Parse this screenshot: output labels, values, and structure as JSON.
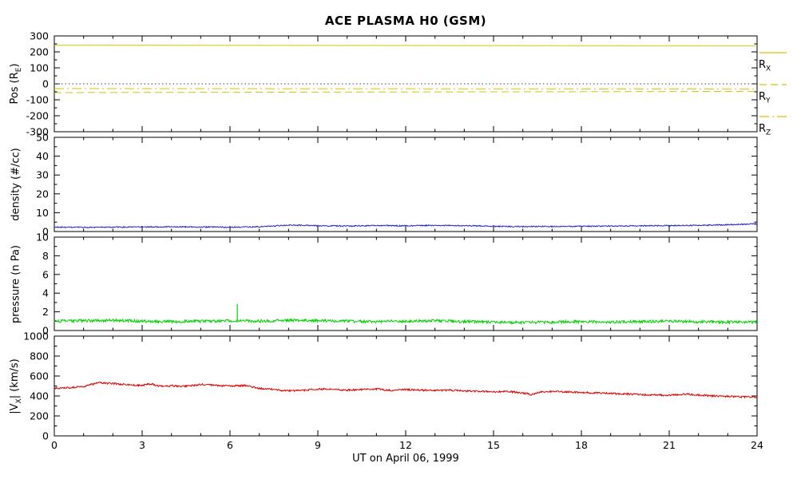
{
  "chart_data": {
    "type": "line",
    "title": "ACE PLASMA H0 (GSM)",
    "xlabel": "UT on April 06, 1999",
    "xlim": [
      0,
      24
    ],
    "x_ticks": [
      0,
      3,
      6,
      9,
      12,
      15,
      18,
      21,
      24
    ],
    "x_minor": 1,
    "frame_color": "#000000",
    "background": "#ffffff",
    "panels": [
      {
        "ylabel": {
          "pre": "Pos (R",
          "sub": "E",
          "post": ")"
        },
        "ylim": [
          -300,
          300
        ],
        "yticks": [
          -300,
          -200,
          -100,
          0,
          100,
          200,
          300
        ],
        "yminor": 50,
        "series": [
          {
            "name": "zero-reference",
            "color": "#3b3b7a",
            "style": "dot",
            "x": [
              0,
              24
            ],
            "y": [
              0,
              0
            ],
            "noise": 0
          },
          {
            "name": "R_X",
            "color": "#d9c300",
            "style": "solid",
            "x": [
              0,
              24
            ],
            "y": [
              242,
              238
            ],
            "noise": 0
          },
          {
            "name": "R_Y",
            "color": "#d9c300",
            "style": "dash",
            "x": [
              0,
              24
            ],
            "y": [
              -55,
              -47
            ],
            "noise": 0
          },
          {
            "name": "R_Z",
            "color": "#d9c300",
            "style": "dashdot",
            "x": [
              0,
              24
            ],
            "y": [
              -30,
              -33
            ],
            "noise": 0
          }
        ]
      },
      {
        "ylabel": {
          "pre": "density (#/cc)",
          "sub": "",
          "post": ""
        },
        "ylim": [
          0,
          50
        ],
        "yticks": [
          0,
          10,
          20,
          30,
          40,
          50
        ],
        "yminor": 5,
        "series": [
          {
            "name": "proton-density",
            "color": "#2222cc",
            "style": "solid",
            "x": [
              0,
              1,
              2,
              3,
              4,
              5,
              6,
              7,
              8,
              9,
              10,
              11,
              12,
              13,
              14,
              15,
              16,
              17,
              18,
              19,
              20,
              21,
              22,
              23,
              24
            ],
            "y": [
              2.3,
              2.2,
              2.3,
              2.4,
              2.5,
              2.4,
              2.3,
              2.5,
              3.4,
              3.1,
              2.9,
              3.2,
              3.0,
              3.3,
              3.1,
              2.8,
              2.6,
              2.7,
              2.8,
              2.9,
              3.0,
              3.1,
              3.3,
              3.6,
              4.1
            ],
            "noise": 0.3
          }
        ]
      },
      {
        "ylabel": {
          "pre": "pressure (n Pa)",
          "sub": "",
          "post": ""
        },
        "ylim": [
          0,
          10
        ],
        "yticks": [
          0,
          2,
          4,
          6,
          8,
          10
        ],
        "yminor": 1,
        "series": [
          {
            "name": "flow-pressure",
            "color": "#00d000",
            "style": "solid",
            "x": [
              0,
              1,
              2,
              3,
              4,
              5,
              6,
              7,
              8,
              9,
              10,
              11,
              12,
              13,
              14,
              15,
              16,
              17,
              18,
              19,
              20,
              21,
              22,
              23,
              24
            ],
            "y": [
              1.0,
              1.05,
              1.1,
              1.0,
              0.95,
              1.0,
              1.05,
              1.0,
              1.1,
              1.05,
              1.0,
              0.95,
              1.0,
              1.05,
              0.95,
              0.9,
              0.85,
              0.9,
              0.95,
              0.9,
              0.95,
              1.0,
              0.95,
              0.9,
              0.9
            ],
            "noise": 0.15,
            "spikes": [
              {
                "x": 6.25,
                "y": 2.85
              }
            ]
          }
        ]
      },
      {
        "ylabel": {
          "pre": "|V",
          "sub": "X",
          "post": "| (km/s)"
        },
        "ylim": [
          0,
          1000
        ],
        "yticks": [
          0,
          200,
          400,
          600,
          800,
          1000
        ],
        "yminor": 100,
        "series": [
          {
            "name": "flow-speed",
            "color": "#d80000",
            "style": "solid",
            "x": [
              0,
              0.5,
              1,
              1.5,
              2,
              2.5,
              3,
              3.3,
              3.6,
              4,
              4.5,
              5,
              5.5,
              6,
              6.5,
              7,
              7.5,
              8,
              8.5,
              9,
              9.5,
              10,
              10.5,
              11,
              11.5,
              12,
              12.5,
              13,
              13.5,
              14,
              14.5,
              15,
              15.5,
              16,
              16.3,
              16.6,
              17,
              17.5,
              18,
              18.5,
              19,
              19.5,
              20,
              20.5,
              21,
              21.5,
              22,
              22.5,
              23,
              23.5,
              24
            ],
            "y": [
              480,
              483,
              495,
              532,
              525,
              512,
              505,
              522,
              500,
              502,
              498,
              514,
              506,
              500,
              504,
              476,
              464,
              452,
              456,
              470,
              464,
              459,
              464,
              470,
              456,
              465,
              459,
              455,
              459,
              450,
              446,
              441,
              446,
              430,
              414,
              442,
              446,
              441,
              436,
              430,
              426,
              420,
              415,
              410,
              406,
              418,
              410,
              400,
              396,
              391,
              389
            ],
            "noise": 9
          }
        ]
      }
    ],
    "legend": [
      {
        "label": {
          "pre": "R",
          "sub": "X"
        },
        "color": "#d9c300",
        "style": "solid"
      },
      {
        "label": {
          "pre": "R",
          "sub": "Y"
        },
        "color": "#d9c300",
        "style": "dash"
      },
      {
        "label": {
          "pre": "R",
          "sub": "Z"
        },
        "color": "#d9c300",
        "style": "dashdot"
      }
    ]
  }
}
